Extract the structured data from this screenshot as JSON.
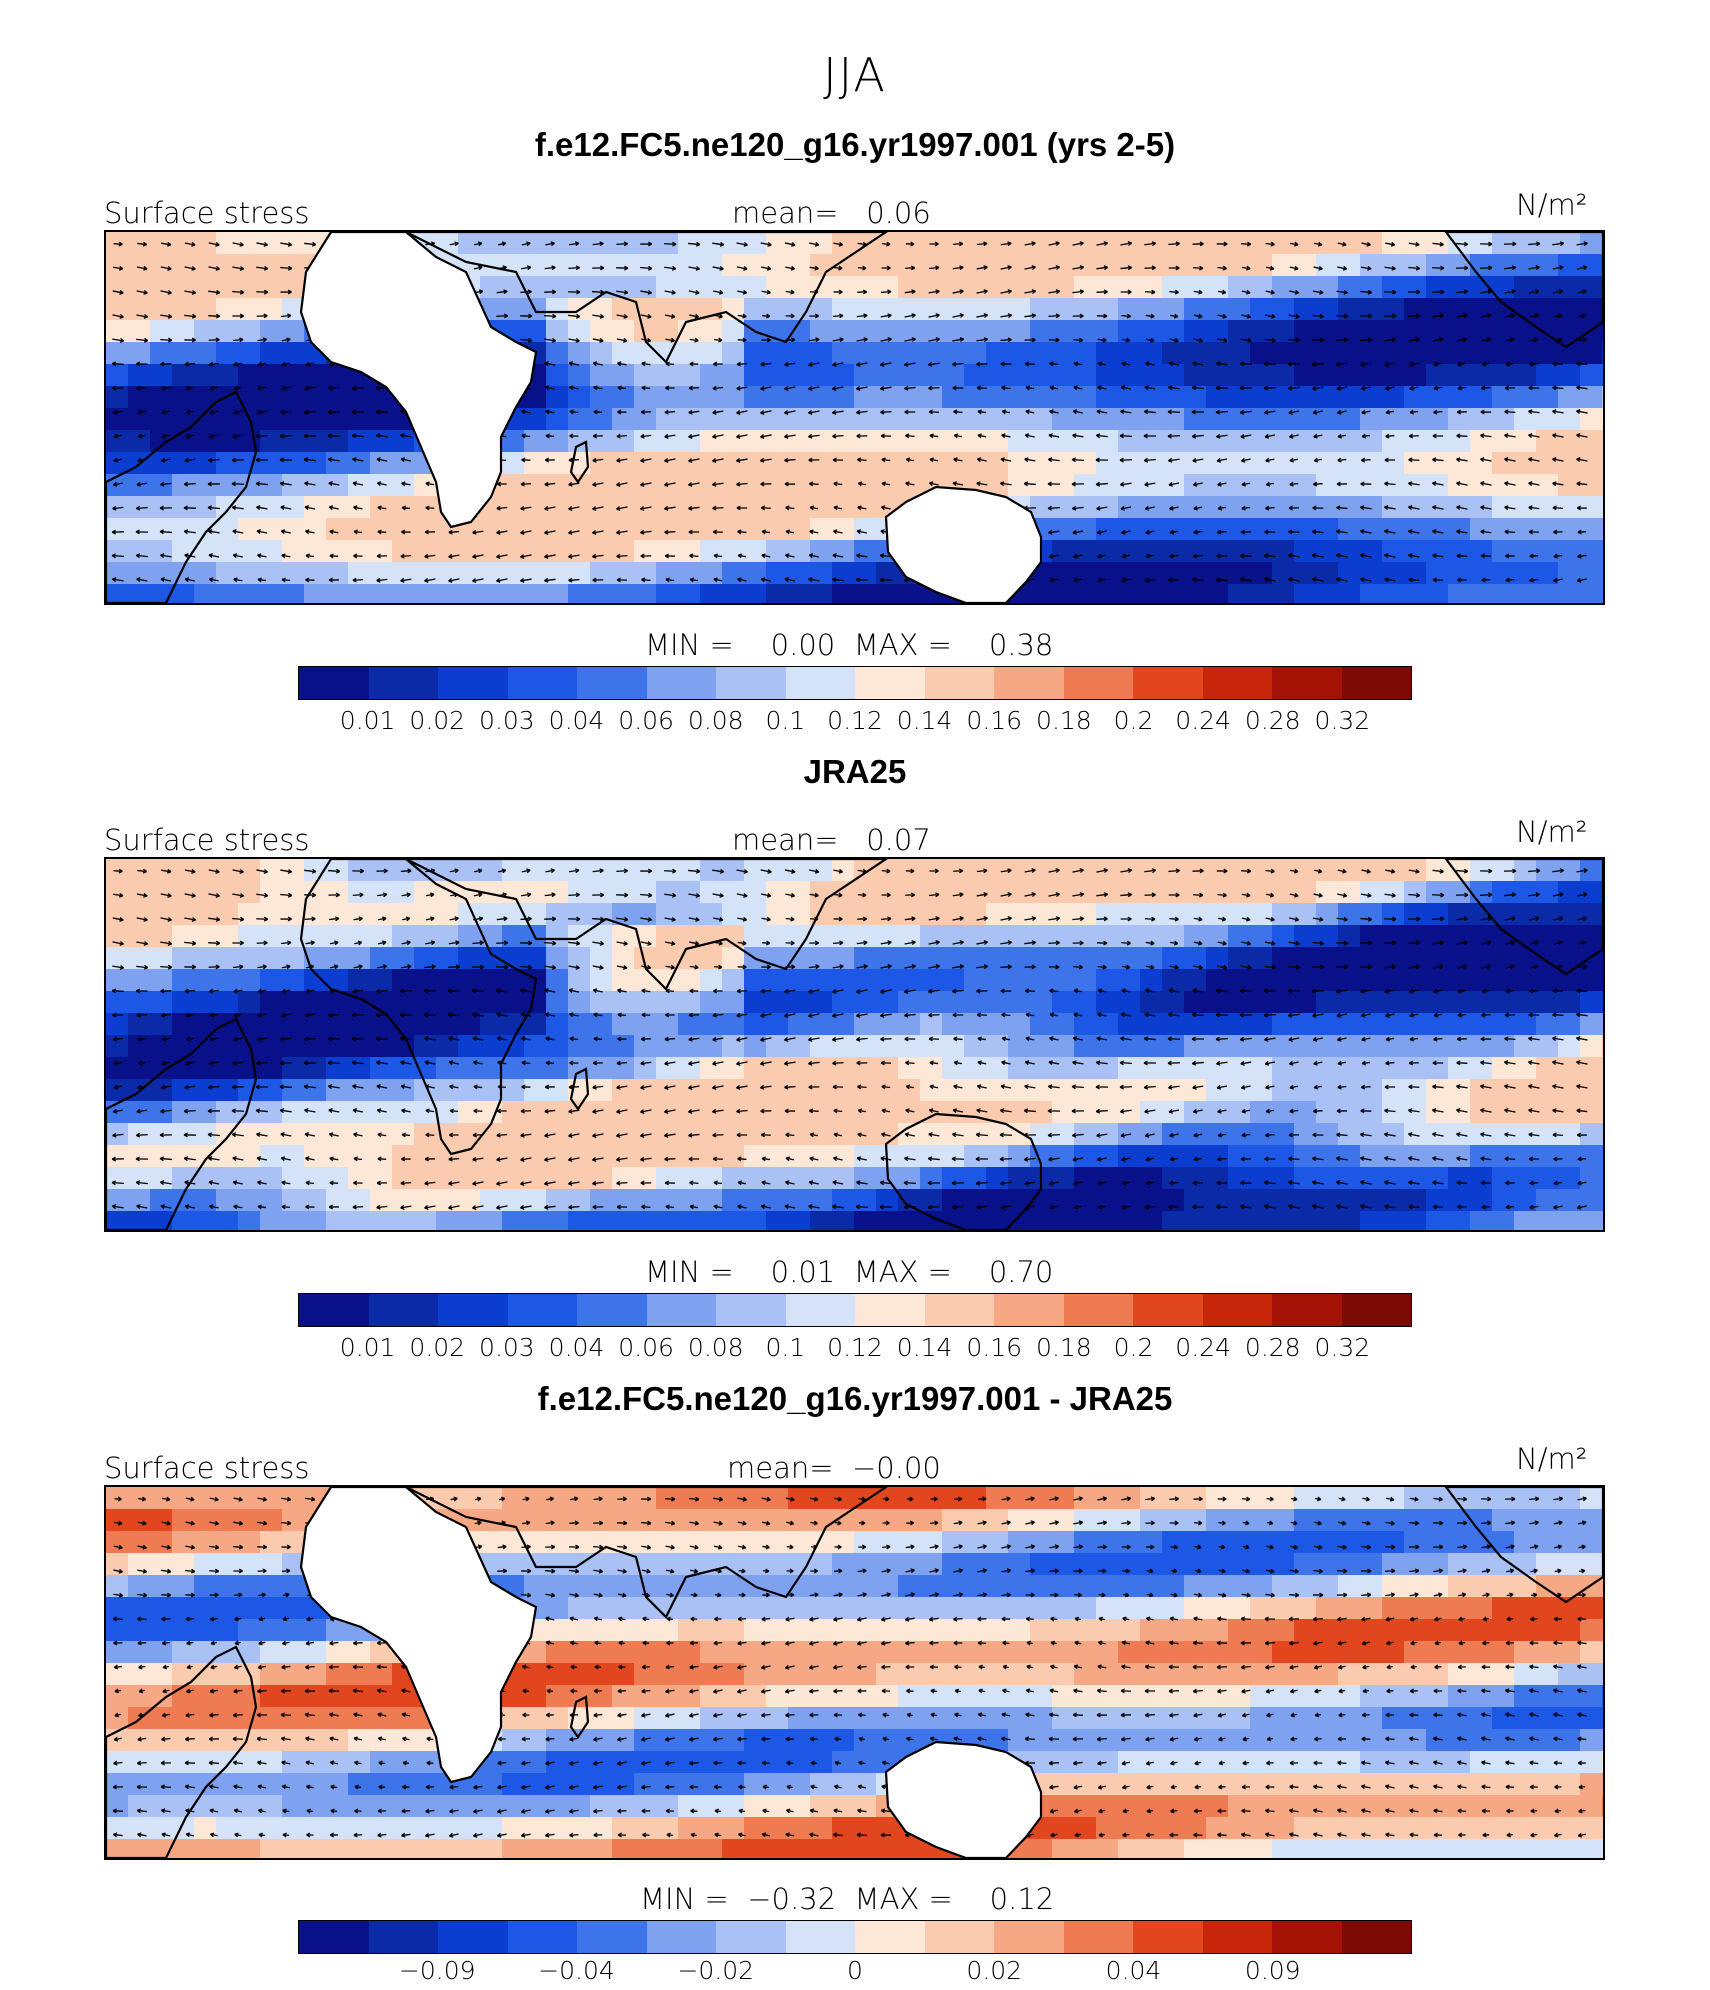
{
  "figure": {
    "title": "JJA"
  },
  "colors": {
    "palette": [
      "#08108a",
      "#0a2aa8",
      "#0b3ed0",
      "#1c57e6",
      "#3e74ea",
      "#7ea1f0",
      "#a9c1f4",
      "#d4e3f8",
      "#fde8d8",
      "#fbcbb0",
      "#f6a884",
      "#ef7b52",
      "#e2461f",
      "#c8260b",
      "#a41206",
      "#7b0a03"
    ],
    "coast": "#000000",
    "land": "#ffffff"
  },
  "panels": [
    {
      "title": "f.e12.FC5.ne120_g16.yr1997.001 (yrs 2-5)",
      "variable": "Surface stress",
      "mean_label": "mean=",
      "mean_value": "0.06",
      "units": "N/m²",
      "min_label": "MIN =",
      "min_value": "0.00",
      "max_label": "MAX =",
      "max_value": "0.38",
      "colorbar_ticks": [
        "0.01",
        "0.02",
        "0.03",
        "0.04",
        "0.06",
        "0.08",
        "0.1",
        "0.12",
        "0.14",
        "0.16",
        "0.18",
        "0.2",
        "0.24",
        "0.28",
        "0.32"
      ]
    },
    {
      "title": "JRA25",
      "variable": "Surface stress",
      "mean_label": "mean=",
      "mean_value": "0.07",
      "units": "N/m²",
      "min_label": "MIN =",
      "min_value": "0.01",
      "max_label": "MAX =",
      "max_value": "0.70",
      "colorbar_ticks": [
        "0.01",
        "0.02",
        "0.03",
        "0.04",
        "0.06",
        "0.08",
        "0.1",
        "0.12",
        "0.14",
        "0.16",
        "0.18",
        "0.2",
        "0.24",
        "0.28",
        "0.32"
      ]
    },
    {
      "title": "f.e12.FC5.ne120_g16.yr1997.001 - JRA25",
      "variable": "Surface stress",
      "mean_label": "mean=",
      "mean_value": "−0.00",
      "units": "N/m²",
      "min_label": "MIN =",
      "min_value": "−0.32",
      "max_label": "MAX =",
      "max_value": "0.12",
      "colorbar_ticks": [
        "",
        "−0.09",
        "",
        "−0.04",
        "",
        "−0.02",
        "",
        "0",
        "",
        "0.02",
        "",
        "0.04",
        "",
        "0.09",
        ""
      ]
    }
  ]
}
